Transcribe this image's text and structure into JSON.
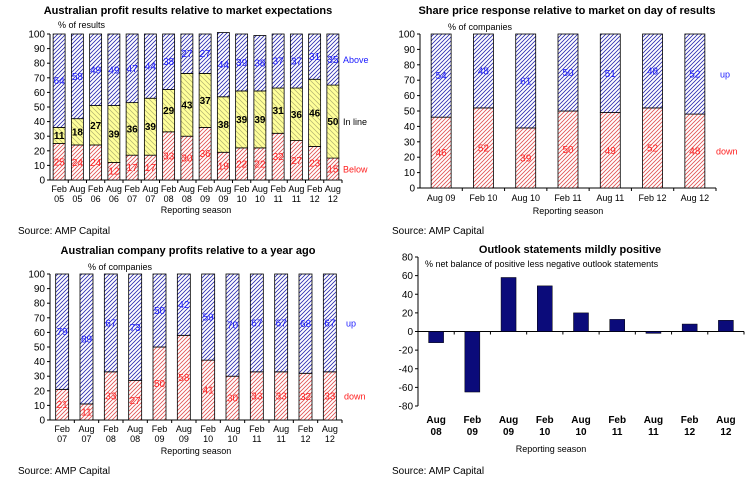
{
  "colors": {
    "blue": "#1a1aff",
    "red": "#ff2020",
    "yellow": "#ffff99",
    "navy": "#0b0b7a",
    "pink": "#f7caca",
    "lav": "#c9c9ee"
  },
  "sources": [
    "Source: AMP Capital",
    "Source: AMP Capital",
    "Source: AMP Capital",
    "Source: AMP Capital"
  ],
  "chart_data": [
    {
      "type": "bar",
      "stacked": true,
      "title": "Australian profit results relative to market expectations",
      "ylabel": "% of results",
      "xlabel": "Reporting season",
      "ylim": [
        0,
        100
      ],
      "yticks": [
        0,
        10,
        20,
        30,
        40,
        50,
        60,
        70,
        80,
        90,
        100
      ],
      "categories": [
        [
          "Feb",
          "05"
        ],
        [
          "Aug",
          "05"
        ],
        [
          "Feb",
          "06"
        ],
        [
          "Aug",
          "06"
        ],
        [
          "Feb",
          "07"
        ],
        [
          "Aug",
          "07"
        ],
        [
          "Feb",
          "08"
        ],
        [
          "Aug",
          "08"
        ],
        [
          "Feb",
          "09"
        ],
        [
          "Aug",
          "09"
        ],
        [
          "Feb",
          "10"
        ],
        [
          "Aug",
          "10"
        ],
        [
          "Feb",
          "11"
        ],
        [
          "Aug",
          "11"
        ],
        [
          "Feb",
          "12"
        ],
        [
          "Aug",
          "12"
        ]
      ],
      "series": [
        {
          "name": "Below",
          "values": [
            25,
            24,
            24,
            12,
            17,
            17,
            33,
            30,
            36,
            19,
            22,
            22,
            32,
            27,
            23,
            15
          ]
        },
        {
          "name": "In line",
          "values": [
            11,
            18,
            27,
            39,
            36,
            39,
            29,
            43,
            37,
            38,
            39,
            39,
            31,
            36,
            46,
            50
          ]
        },
        {
          "name": "Above",
          "values": [
            64,
            58,
            49,
            49,
            47,
            44,
            38,
            27,
            27,
            44,
            39,
            38,
            37,
            37,
            31,
            35
          ]
        }
      ]
    },
    {
      "type": "bar",
      "stacked": true,
      "title": "Share price response relative to market on day of results",
      "ylabel": "% of companies",
      "xlabel": "Reporting season",
      "ylim": [
        0,
        100
      ],
      "yticks": [
        0,
        10,
        20,
        30,
        40,
        50,
        60,
        70,
        80,
        90,
        100
      ],
      "categories": [
        "Aug 09",
        "Feb 10",
        "Aug 10",
        "Feb 11",
        "Aug 11",
        "Feb 12",
        "Aug 12"
      ],
      "series": [
        {
          "name": "down",
          "values": [
            46,
            52,
            39,
            50,
            49,
            52,
            48
          ]
        },
        {
          "name": "up",
          "values": [
            54,
            48,
            61,
            50,
            51,
            48,
            52
          ]
        }
      ]
    },
    {
      "type": "bar",
      "stacked": true,
      "title": "Australian company profits relative to a year ago",
      "ylabel": "% of companies",
      "xlabel": "Reporting season",
      "ylim": [
        0,
        100
      ],
      "yticks": [
        0,
        10,
        20,
        30,
        40,
        50,
        60,
        70,
        80,
        90,
        100
      ],
      "categories": [
        [
          "Feb",
          "07"
        ],
        [
          "Aug",
          "07"
        ],
        [
          "Feb",
          "08"
        ],
        [
          "Aug",
          "08"
        ],
        [
          "Feb",
          "09"
        ],
        [
          "Aug",
          "09"
        ],
        [
          "Feb",
          "10"
        ],
        [
          "Aug",
          "10"
        ],
        [
          "Feb",
          "11"
        ],
        [
          "Aug",
          "11"
        ],
        [
          "Feb",
          "12"
        ],
        [
          "Aug",
          "12"
        ]
      ],
      "series": [
        {
          "name": "down",
          "values": [
            21,
            11,
            33,
            27,
            50,
            58,
            41,
            30,
            33,
            33,
            32,
            33
          ]
        },
        {
          "name": "up",
          "values": [
            79,
            89,
            67,
            73,
            50,
            42,
            59,
            70,
            67,
            67,
            68,
            67
          ]
        }
      ]
    },
    {
      "type": "bar",
      "title": "Outlook statements mildly positive",
      "ylabel": "% net balance of positive less negative outlook statements",
      "xlabel": "Reporting season",
      "ylim": [
        -80,
        80
      ],
      "yticks": [
        -80,
        -60,
        -40,
        -20,
        0,
        20,
        40,
        60,
        80
      ],
      "categories": [
        [
          "Aug",
          "08"
        ],
        [
          "Feb",
          "09"
        ],
        [
          "Aug",
          "09"
        ],
        [
          "Feb",
          "10"
        ],
        [
          "Aug",
          "10"
        ],
        [
          "Feb",
          "11"
        ],
        [
          "Aug",
          "11"
        ],
        [
          "Feb",
          "12"
        ],
        [
          "Aug",
          "12"
        ]
      ],
      "values": [
        -12,
        -65,
        58,
        49,
        20,
        13,
        -2,
        8,
        12
      ]
    }
  ]
}
